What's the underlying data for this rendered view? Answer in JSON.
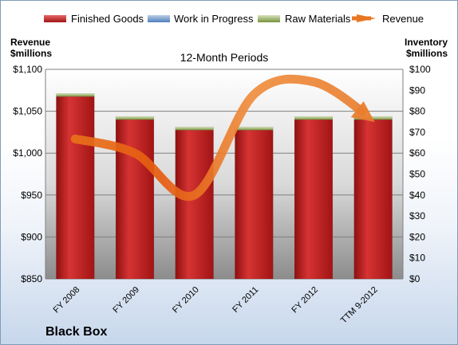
{
  "chart_data": {
    "type": "bar",
    "subtitle": "12-Month Periods",
    "brand": "Black Box",
    "categories": [
      "FY 2008",
      "FY 2009",
      "FY 2010",
      "FY 2011",
      "FY 2012",
      "TTM 9-2012"
    ],
    "left_axis": {
      "title_line1": "Revenue",
      "title_line2": "$millions",
      "ticks": [
        "$850",
        "$900",
        "$950",
        "$1,000",
        "$1,050",
        "$1,100"
      ],
      "ylim": [
        850,
        1100
      ]
    },
    "right_axis": {
      "title_line1": "Inventory",
      "title_line2": "$millions",
      "ticks": [
        "$0",
        "$10",
        "$20",
        "$30",
        "$40",
        "$50",
        "$60",
        "$70",
        "$80",
        "$90",
        "$100"
      ],
      "ylim": [
        0,
        100
      ]
    },
    "series": [
      {
        "name": "Finished Goods",
        "axis": "right",
        "color": "#c00000",
        "values": [
          87,
          76,
          71,
          71,
          76,
          76
        ]
      },
      {
        "name": "Work in Progress",
        "axis": "right",
        "color": "#4f81bd",
        "values": [
          0,
          0,
          0,
          0,
          0,
          0
        ]
      },
      {
        "name": "Raw Materials",
        "axis": "right",
        "color": "#9bbb59",
        "values": [
          1.5,
          1.5,
          1.5,
          1.5,
          1.5,
          1.5
        ]
      },
      {
        "name": "Revenue",
        "axis": "left",
        "type": "line",
        "color": "#e87722",
        "values": [
          1017,
          1000,
          950,
          1070,
          1085,
          1040
        ]
      }
    ],
    "grid": true,
    "legend_position": "top"
  }
}
